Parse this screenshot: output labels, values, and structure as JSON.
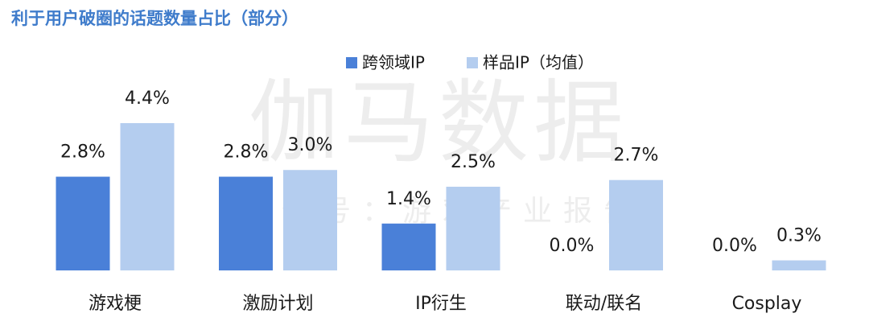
{
  "chart_data": {
    "type": "bar",
    "title": "利于用户破圈的话题数量占比（部分）",
    "watermark": [
      "伽马数据",
      "微信号：游戏产业报告"
    ],
    "categories": [
      "游戏梗",
      "激励计划",
      "IP衍生",
      "联动/联名",
      "Cosplay"
    ],
    "series": [
      {
        "name": "跨领域IP",
        "color": "#4a80d8",
        "values": [
          2.8,
          2.8,
          1.4,
          0.0,
          0.0
        ],
        "value_labels": [
          "2.8%",
          "2.8%",
          "1.4%",
          "0.0%",
          "0.0%"
        ]
      },
      {
        "name": "样品IP（均值）",
        "color": "#b4cdef",
        "values": [
          4.4,
          3.0,
          2.5,
          2.7,
          0.3
        ],
        "value_labels": [
          "4.4%",
          "3.0%",
          "2.5%",
          "2.7%",
          "0.3%"
        ]
      }
    ],
    "legend": "top"
  }
}
